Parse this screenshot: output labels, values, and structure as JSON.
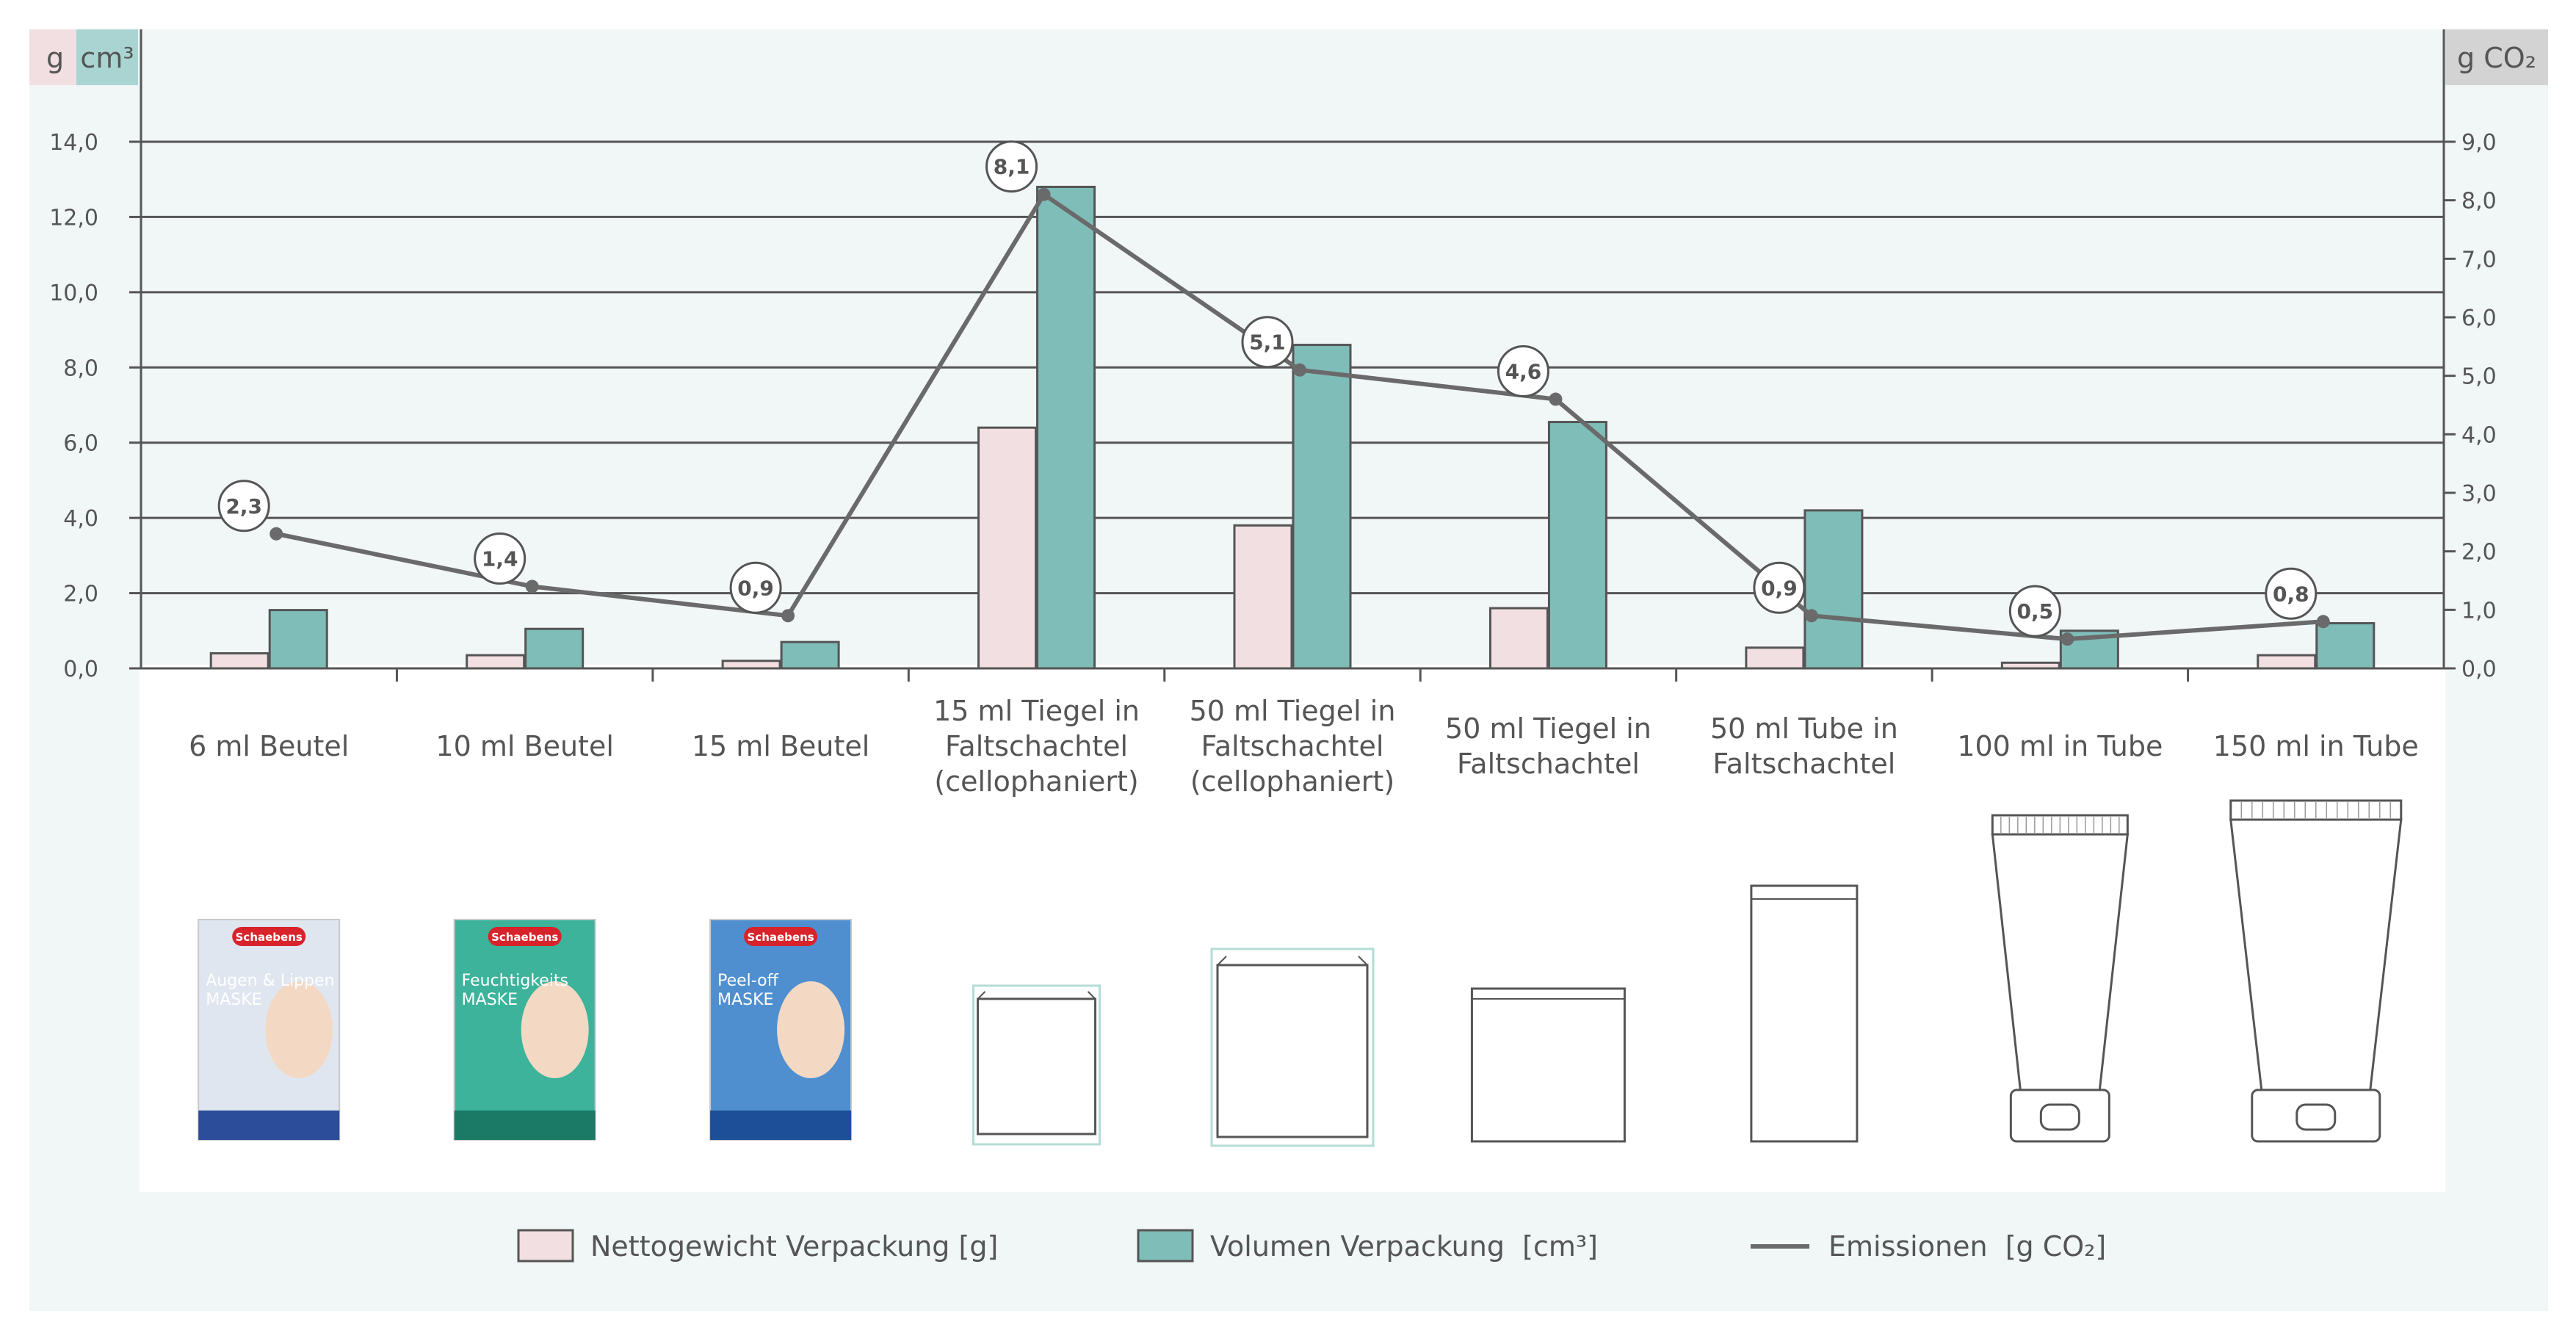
{
  "chart_data": {
    "type": "bar",
    "categories": [
      [
        "6 ml Beutel"
      ],
      [
        "10 ml Beutel"
      ],
      [
        "15 ml Beutel"
      ],
      [
        "15 ml Tiegel in",
        "Faltschachtel",
        "(cellophaniert)"
      ],
      [
        "50 ml Tiegel in",
        "Faltschachtel",
        "(cellophaniert)"
      ],
      [
        "50 ml Tiegel in",
        "Faltschachtel"
      ],
      [
        "50 ml Tube in",
        "Faltschachtel"
      ],
      [
        "100 ml in Tube"
      ],
      [
        "150 ml in Tube"
      ]
    ],
    "series": [
      {
        "name": "Nettogewicht Verpackung [g]",
        "type": "bar",
        "axis": "left",
        "color": "#f2dfe1",
        "values": [
          0.4,
          0.35,
          0.2,
          6.4,
          3.8,
          1.6,
          0.55,
          0.15,
          0.35
        ]
      },
      {
        "name": "Volumen Verpackung  [cm³]",
        "type": "bar",
        "axis": "left",
        "color": "#7fbdb9",
        "values": [
          1.55,
          1.05,
          0.7,
          12.8,
          8.6,
          6.55,
          4.2,
          1.0,
          1.2
        ]
      },
      {
        "name": "Emissionen  [g CO₂]",
        "type": "line",
        "axis": "right",
        "color": "#6a6a6a",
        "values": [
          2.3,
          1.4,
          0.9,
          8.1,
          5.1,
          4.6,
          0.9,
          0.5,
          0.8
        ]
      }
    ],
    "data_labels": [
      "2,3",
      "1,4",
      "0,9",
      "8,1",
      "5,1",
      "4,6",
      "0,9",
      "0,5",
      "0,8"
    ],
    "left_axis": {
      "label_parts": [
        "g",
        "cm³"
      ],
      "ylim": [
        0,
        14
      ],
      "ticks": [
        "0,0",
        "2,0",
        "4,0",
        "6,0",
        "8,0",
        "10,0",
        "12,0",
        "14,0"
      ]
    },
    "right_axis": {
      "label": "g CO₂",
      "ylim": [
        0,
        9
      ],
      "ticks": [
        "0,0",
        "1,0",
        "2,0",
        "3,0",
        "4,0",
        "5,0",
        "6,0",
        "7,0",
        "8,0",
        "9,0"
      ]
    },
    "grid": true,
    "legend_position": "bottom",
    "package_icons": [
      "pouch-augen-lippen",
      "pouch-feuchtigkeit",
      "pouch-peel-off",
      "jar-box-cellophane-small",
      "jar-box-cellophane-large",
      "jar-box",
      "tube-box",
      "tube-100",
      "tube-150"
    ]
  },
  "pouches": [
    {
      "brand": "Schaebens",
      "line1": "Augen & Lippen",
      "line2": "MASKE",
      "color": "#dfe6f0",
      "accent": "#2c4d9a"
    },
    {
      "brand": "Schaebens",
      "line1": "Feuchtigkeits",
      "line2": "MASKE",
      "color": "#3cb39a",
      "accent": "#1a7a66"
    },
    {
      "brand": "Schaebens",
      "line1": "Peel-off",
      "line2": "MASKE",
      "color": "#4f8fd0",
      "accent": "#1c4f97"
    }
  ],
  "colors": {
    "panel": "#f1f6f7",
    "axis": "#555555",
    "text": "#555555",
    "grid": "#555555"
  }
}
